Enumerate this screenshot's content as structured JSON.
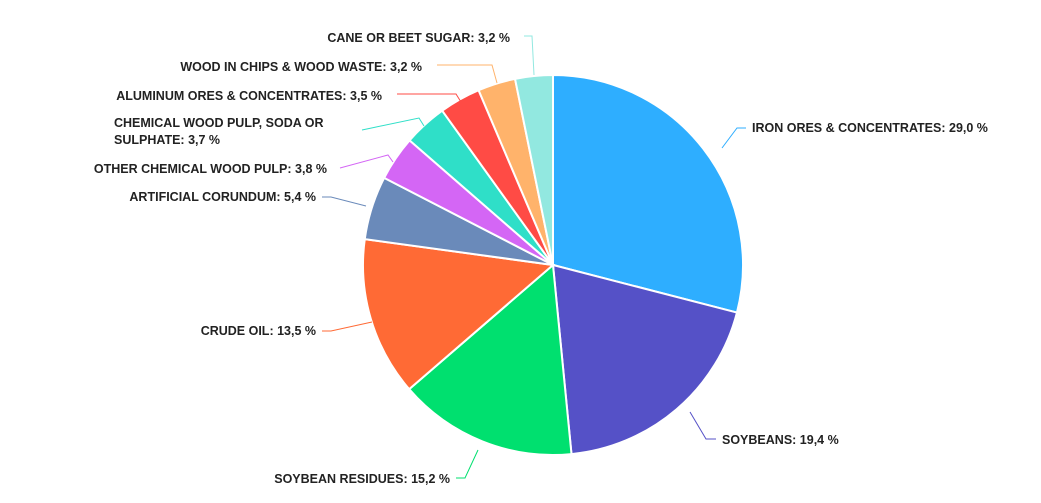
{
  "chart_data": {
    "type": "pie",
    "title": "",
    "start": "top",
    "direction": "clockwise",
    "slices": [
      {
        "label": "IRON ORES & CONCENTRATES",
        "value": 29.0,
        "display": "IRON ORES & CONCENTRATES: 29,0 %",
        "color": "#2eaeff"
      },
      {
        "label": "SOYBEANS",
        "value": 19.4,
        "display": "SOYBEANS: 19,4 %",
        "color": "#5551c7"
      },
      {
        "label": "SOYBEAN RESIDUES",
        "value": 15.2,
        "display": "SOYBEAN RESIDUES: 15,2 %",
        "color": "#00e06f"
      },
      {
        "label": "CRUDE OIL",
        "value": 13.5,
        "display": "CRUDE OIL: 13,5 %",
        "color": "#ff6a35"
      },
      {
        "label": "ARTIFICIAL CORUNDUM",
        "value": 5.4,
        "display": "ARTIFICIAL CORUNDUM: 5,4 %",
        "color": "#6a8aba"
      },
      {
        "label": "OTHER CHEMICAL WOOD PULP",
        "value": 3.8,
        "display": "OTHER CHEMICAL WOOD PULP: 3,8 %",
        "color": "#d466f5"
      },
      {
        "label": "CHEMICAL WOOD PULP, SODA OR SULPHATE",
        "value": 3.7,
        "display": [
          "CHEMICAL WOOD PULP, SODA OR",
          "SULPHATE: 3,7 %"
        ],
        "color": "#2fdfc8"
      },
      {
        "label": "ALUMINUM ORES & CONCENTRATES",
        "value": 3.5,
        "display": "ALUMINUM ORES & CONCENTRATES: 3,5 %",
        "color": "#ff4b45"
      },
      {
        "label": "WOOD IN CHIPS & WOOD WASTE",
        "value": 3.2,
        "display": "WOOD IN CHIPS & WOOD WASTE: 3,2 %",
        "color": "#ffb36b"
      },
      {
        "label": "CANE OR BEET SUGAR",
        "value": 3.2,
        "display": "CANE OR BEET SUGAR: 3,2 %",
        "color": "#92e8e0"
      }
    ]
  }
}
